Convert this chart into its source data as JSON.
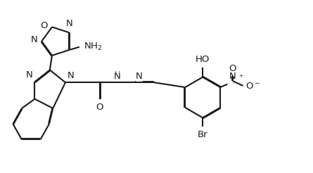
{
  "bg_color": "#ffffff",
  "line_color": "#1a1a1a",
  "line_width": 1.5,
  "font_size": 9.5,
  "figsize": [
    4.45,
    2.46
  ],
  "dpi": 100,
  "xlim": [
    0,
    10
  ],
  "ylim": [
    0,
    5.5
  ]
}
